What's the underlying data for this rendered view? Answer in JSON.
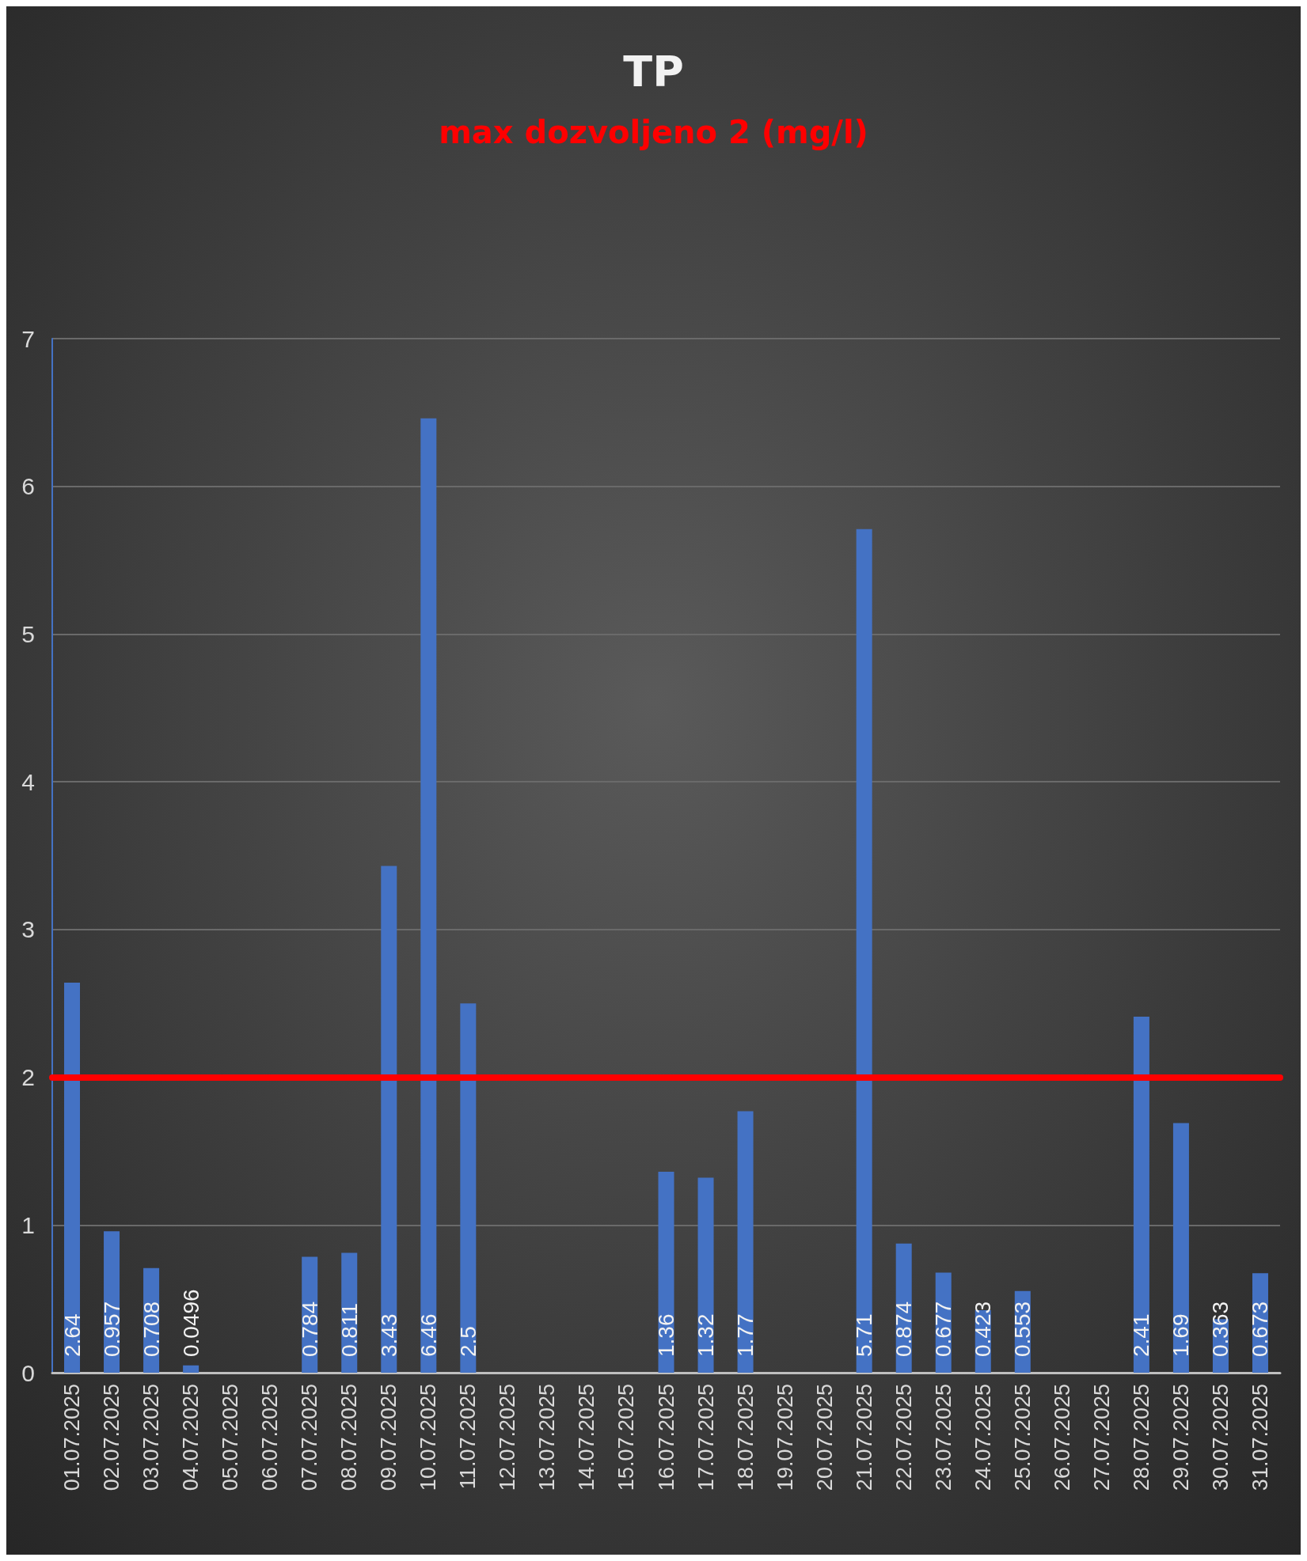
{
  "chart_data": {
    "type": "bar",
    "title": "TP",
    "subtitle": "max dozvoljeno 2 (mg/l)",
    "categories": [
      "01.07.2025",
      "02.07.2025",
      "03.07.2025",
      "04.07.2025",
      "05.07.2025",
      "06.07.2025",
      "07.07.2025",
      "08.07.2025",
      "09.07.2025",
      "10.07.2025",
      "11.07.2025",
      "12.07.2025",
      "13.07.2025",
      "14.07.2025",
      "15.07.2025",
      "16.07.2025",
      "17.07.2025",
      "18.07.2025",
      "19.07.2025",
      "20.07.2025",
      "21.07.2025",
      "22.07.2025",
      "23.07.2025",
      "24.07.2025",
      "25.07.2025",
      "26.07.2025",
      "27.07.2025",
      "28.07.2025",
      "29.07.2025",
      "30.07.2025",
      "31.07.2025"
    ],
    "values": [
      2.64,
      0.957,
      0.708,
      0.0496,
      null,
      null,
      0.784,
      0.811,
      3.43,
      6.46,
      2.5,
      null,
      null,
      null,
      null,
      1.36,
      1.32,
      1.77,
      null,
      null,
      5.71,
      0.874,
      0.677,
      0.423,
      0.553,
      null,
      null,
      2.41,
      1.69,
      0.363,
      0.673
    ],
    "color": "#4472c4",
    "ylim": [
      0,
      7
    ],
    "yticks": [
      0,
      1,
      2,
      3,
      4,
      5,
      6,
      7
    ],
    "grid": "y",
    "data_labels": true,
    "ref_lines": [
      {
        "axis": "y",
        "value": 2,
        "color": "#ff0000"
      }
    ]
  }
}
